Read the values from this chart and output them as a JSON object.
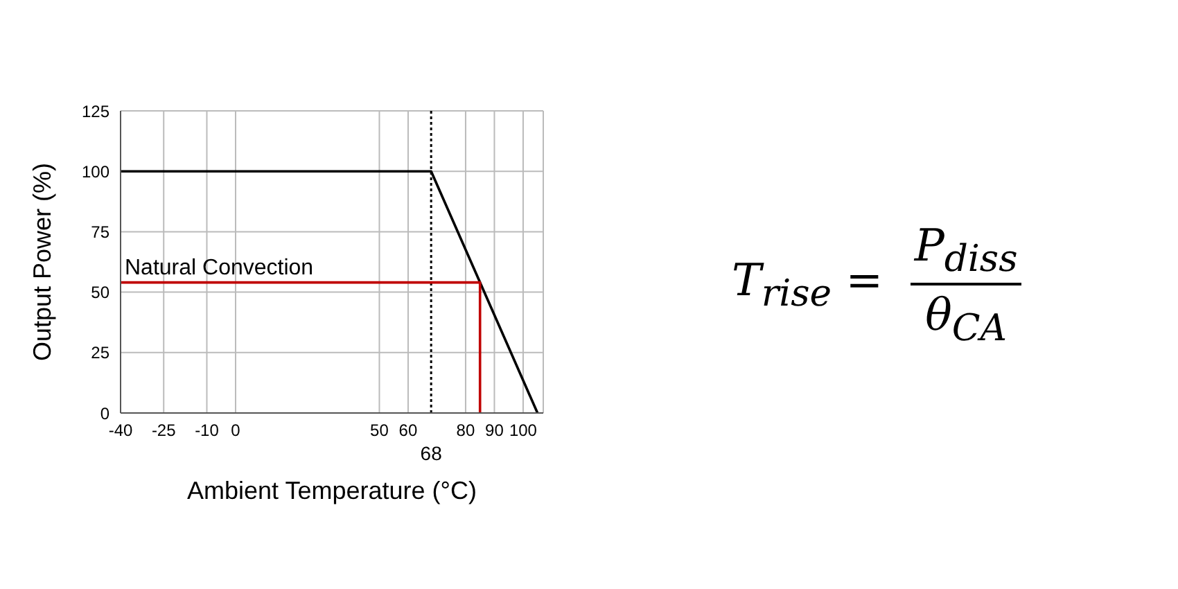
{
  "chart_data": {
    "type": "line",
    "xlabel": "Ambient Temperature (°C)",
    "ylabel": "Output Power (%)",
    "xlim": [
      -40,
      107
    ],
    "xticks": [
      -40,
      -25,
      -10,
      0,
      50,
      60,
      80,
      90,
      100
    ],
    "ylim": [
      0,
      125
    ],
    "yticks": [
      0,
      25,
      50,
      75,
      100,
      125
    ],
    "series": [
      {
        "color": "#000000",
        "x": [
          -40,
          68,
          105
        ],
        "values": [
          100,
          100,
          0
        ]
      },
      {
        "color": "#c00000",
        "x": [
          -40,
          85,
          85
        ],
        "values": [
          54,
          54,
          0
        ]
      }
    ],
    "ref_lines": [
      {
        "axis": "x",
        "value": 68,
        "label": "68",
        "color": "#000000",
        "line_style": "dotted"
      }
    ],
    "annotations": [
      {
        "text": "Natural Convection",
        "x": -40,
        "y": 54
      },
      "T$_{rise}$ =",
      "P$_{diss}$",
      "θ$_{CA}$"
    ],
    "grid": true,
    "marker": "none",
    "line_style": "solid",
    "legend": false
  }
}
